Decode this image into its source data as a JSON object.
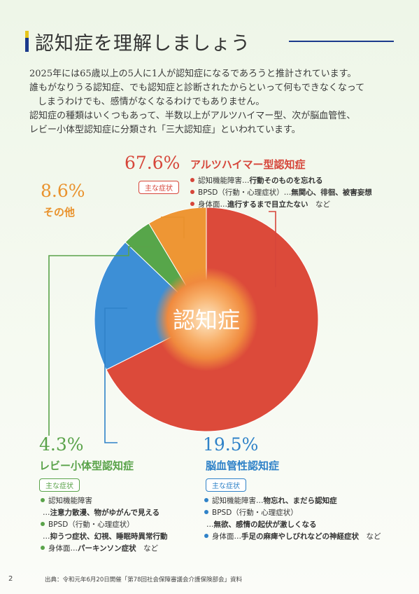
{
  "title": "認知症を理解しましょう",
  "intro": [
    "2025年には65歳以上の5人に1人が認知症になるであろうと推計されています。",
    "誰もがなりうる認知症、でも認知症と診断されたからといって何もできなくなって",
    "しまうわけでも、感情がなくなるわけでもありません。",
    "認知症の種類はいくつもあって、半数以上がアルツハイマー型、次が脳血管性、",
    "レビー小体型認知症に分類され「三大認知症」といわれています。"
  ],
  "chart_data": {
    "type": "pie",
    "center_label": "認知症",
    "slices": [
      {
        "name": "アルツハイマー型認知症",
        "percent_label": "67.6%",
        "value": 67.6,
        "color": "#dc4a3a"
      },
      {
        "name": "脳血管性認知症",
        "percent_label": "19.5%",
        "value": 19.5,
        "color": "#3d8fd6"
      },
      {
        "name": "レビー小体型認知症",
        "percent_label": "4.3%",
        "value": 4.3,
        "color": "#57a64a"
      },
      {
        "name": "その他",
        "percent_label": "8.6%",
        "value": 8.6,
        "color": "#ee9634"
      }
    ]
  },
  "alzheimer": {
    "pct": "67.6%",
    "name": "アルツハイマー型認知症",
    "badge": "主な症状",
    "symptoms": [
      {
        "bullet": true,
        "label": "認知機能障害…",
        "bold": "行動そのものを忘れる"
      },
      {
        "bullet": true,
        "label": "BPSD（行動・心理症状）…",
        "bold": "無関心、徘徊、被害妄想"
      },
      {
        "bullet": true,
        "label": "身体面…",
        "bold": "進行するまで目立たない",
        "tail": "　など"
      }
    ]
  },
  "other": {
    "pct": "8.6%",
    "name": "その他"
  },
  "lewy": {
    "pct": "4.3%",
    "name": "レビー小体型認知症",
    "badge": "主な症状",
    "symptoms": [
      {
        "bullet": true,
        "label": "認知機能障害",
        "bold": ""
      },
      {
        "bullet": false,
        "label": "…",
        "bold": "注意力散漫、物がゆがんで見える"
      },
      {
        "bullet": true,
        "label": "BPSD（行動・心理症状）",
        "bold": ""
      },
      {
        "bullet": false,
        "label": "…",
        "bold": "抑うつ症状、幻視、睡眠時異常行動"
      },
      {
        "bullet": true,
        "label": "身体面…",
        "bold": "パーキンソン症状",
        "tail": "　など"
      }
    ]
  },
  "vascular": {
    "pct": "19.5%",
    "name": "脳血管性認知症",
    "badge": "主な症状",
    "symptoms": [
      {
        "bullet": true,
        "label": "認知機能障害…",
        "bold": "物忘れ、まだら認知症"
      },
      {
        "bullet": true,
        "label": "BPSD（行動・心理症状）",
        "bold": ""
      },
      {
        "bullet": false,
        "label": "…",
        "bold": "無欲、感情の起伏が激しくなる"
      },
      {
        "bullet": true,
        "label": "身体面…",
        "bold": "手足の麻痺やしびれなどの神経症状",
        "tail": "　など"
      }
    ]
  },
  "footer": {
    "page": "2",
    "source": "出典：令和元年6月20日開催「第78回社会保障審議会介護保険部会」資料"
  },
  "colors": {
    "alzheimer": "#d6463a",
    "vascular": "#2f82c8",
    "lewy": "#5aa34a",
    "other": "#e9922d",
    "title_accent": "#1b3a8c"
  }
}
